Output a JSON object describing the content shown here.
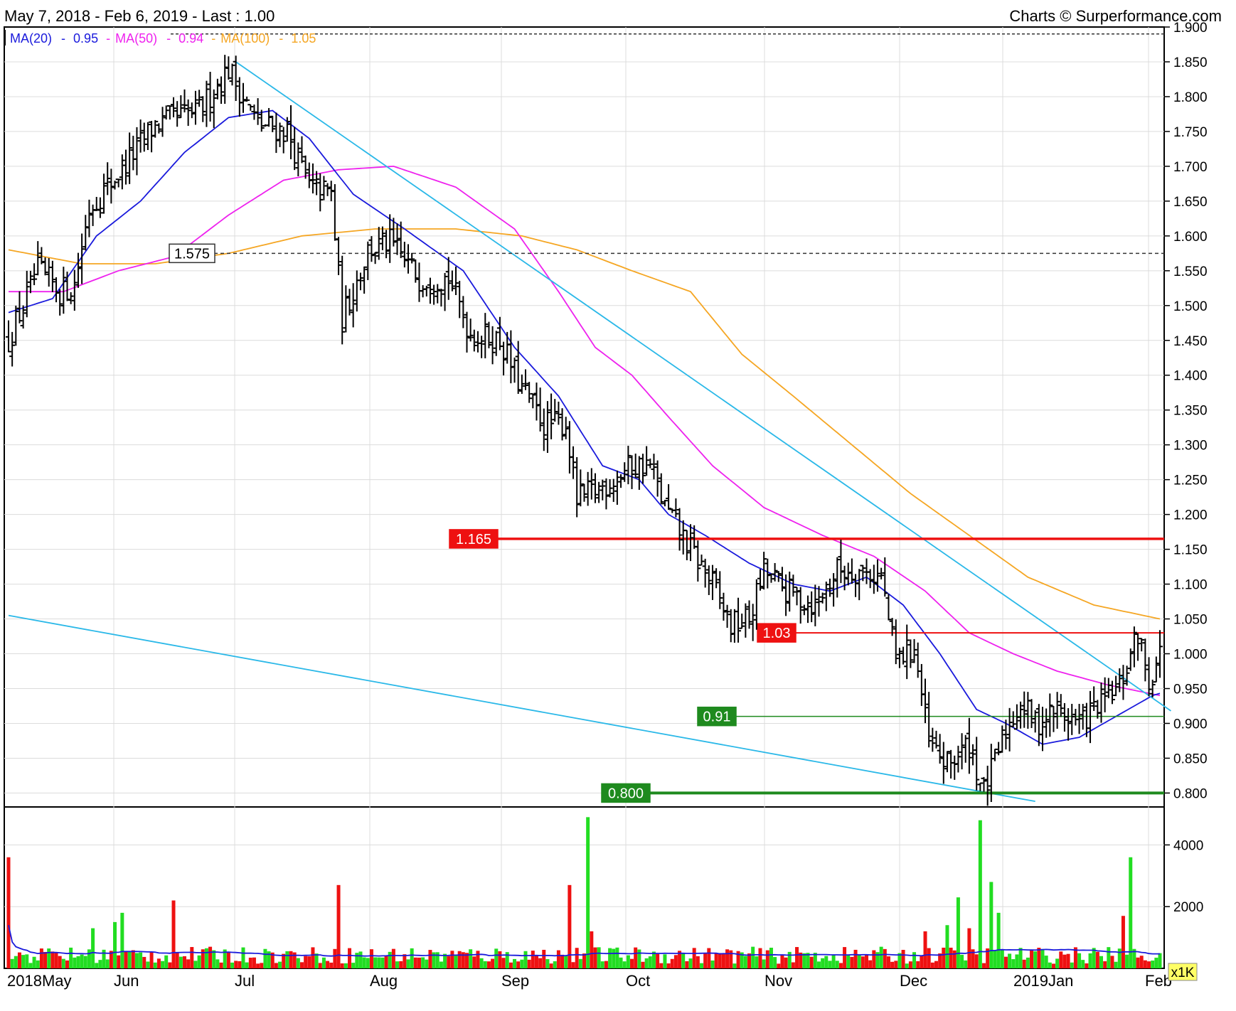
{
  "header": {
    "range_text": "May 7, 2018 - Feb 6, 2019 - Last : 1.00",
    "credit_text": "Charts © Surperformance.com"
  },
  "legend": {
    "ma20_label": "MA(20)",
    "ma20_value": "0.95",
    "ma50_label": "MA(50)",
    "ma50_value": "0.94",
    "ma100_label": "MA(100)",
    "ma100_value": "1.05",
    "sep": "-"
  },
  "volume_unit": "x1K",
  "colors": {
    "price": "#000000",
    "ma20": "#1a1adc",
    "ma50": "#ee22ee",
    "ma100": "#f5a623",
    "trend": "#2ab8e8",
    "resistance": "#ee1111",
    "support": "#119911",
    "vol_up": "#22dd22",
    "vol_down": "#ee1111",
    "vol_avg": "#1a1adc",
    "grid": "#dcdcdc"
  },
  "chart_data": {
    "type": "ohlc",
    "title": "",
    "x_months": [
      "2018May",
      "Jun",
      "Jul",
      "Aug",
      "Sep",
      "Oct",
      "Nov",
      "Dec",
      "2019Jan",
      "Feb"
    ],
    "price_axis": {
      "ylim": [
        0.78,
        1.9
      ],
      "ticks": [
        1.9,
        1.85,
        1.8,
        1.75,
        1.7,
        1.65,
        1.6,
        1.55,
        1.5,
        1.45,
        1.4,
        1.35,
        1.3,
        1.25,
        1.2,
        1.15,
        1.1,
        1.05,
        1.0,
        0.95,
        0.9,
        0.85,
        0.8
      ]
    },
    "volume_axis": {
      "ylim": [
        0,
        5000
      ],
      "ticks": [
        4000,
        2000
      ]
    },
    "levels": [
      {
        "label": "1.575",
        "value": 1.575,
        "kind": "dashed"
      },
      {
        "label": "1.165",
        "value": 1.165,
        "kind": "resistance-strong"
      },
      {
        "label": "1.03",
        "value": 1.03,
        "kind": "resistance"
      },
      {
        "label": "0.91",
        "value": 0.91,
        "kind": "support"
      },
      {
        "label": "0.800",
        "value": 0.8,
        "kind": "support-strong"
      }
    ],
    "top_dashed_value": 1.89,
    "price_anchors": [
      [
        0,
        1.45
      ],
      [
        8,
        1.55
      ],
      [
        14,
        1.52
      ],
      [
        18,
        1.53
      ],
      [
        22,
        1.64
      ],
      [
        30,
        1.69
      ],
      [
        40,
        1.76
      ],
      [
        52,
        1.78
      ],
      [
        60,
        1.84
      ],
      [
        68,
        1.76
      ],
      [
        76,
        1.75
      ],
      [
        82,
        1.67
      ],
      [
        88,
        1.66
      ],
      [
        91,
        1.48
      ],
      [
        98,
        1.58
      ],
      [
        104,
        1.59
      ],
      [
        112,
        1.54
      ],
      [
        120,
        1.54
      ],
      [
        126,
        1.46
      ],
      [
        134,
        1.45
      ],
      [
        140,
        1.38
      ],
      [
        146,
        1.33
      ],
      [
        152,
        1.33
      ],
      [
        155,
        1.22
      ],
      [
        162,
        1.24
      ],
      [
        170,
        1.27
      ],
      [
        175,
        1.27
      ],
      [
        179,
        1.21
      ],
      [
        186,
        1.15
      ],
      [
        192,
        1.1
      ],
      [
        197,
        1.04
      ],
      [
        202,
        1.05
      ],
      [
        206,
        1.12
      ],
      [
        212,
        1.09
      ],
      [
        220,
        1.07
      ],
      [
        226,
        1.12
      ],
      [
        232,
        1.12
      ],
      [
        238,
        1.11
      ],
      [
        242,
        0.99
      ],
      [
        247,
        1.01
      ],
      [
        251,
        0.87
      ],
      [
        256,
        0.84
      ],
      [
        262,
        0.87
      ],
      [
        266,
        0.8
      ],
      [
        272,
        0.89
      ],
      [
        276,
        0.93
      ],
      [
        280,
        0.9
      ],
      [
        286,
        0.92
      ],
      [
        292,
        0.9
      ],
      [
        298,
        0.93
      ],
      [
        303,
        0.95
      ],
      [
        308,
        1.03
      ],
      [
        311,
        0.96
      ],
      [
        314,
        1.0
      ]
    ],
    "ma20_anchors": [
      [
        0,
        1.49
      ],
      [
        12,
        1.51
      ],
      [
        24,
        1.6
      ],
      [
        36,
        1.65
      ],
      [
        48,
        1.72
      ],
      [
        60,
        1.77
      ],
      [
        72,
        1.78
      ],
      [
        82,
        1.74
      ],
      [
        94,
        1.66
      ],
      [
        108,
        1.61
      ],
      [
        124,
        1.55
      ],
      [
        138,
        1.44
      ],
      [
        150,
        1.37
      ],
      [
        162,
        1.27
      ],
      [
        172,
        1.25
      ],
      [
        180,
        1.2
      ],
      [
        190,
        1.17
      ],
      [
        202,
        1.13
      ],
      [
        214,
        1.1
      ],
      [
        224,
        1.09
      ],
      [
        234,
        1.11
      ],
      [
        244,
        1.07
      ],
      [
        254,
        1.0
      ],
      [
        264,
        0.92
      ],
      [
        272,
        0.9
      ],
      [
        282,
        0.87
      ],
      [
        292,
        0.88
      ],
      [
        302,
        0.91
      ],
      [
        312,
        0.94
      ],
      [
        314,
        0.943
      ]
    ],
    "ma50_anchors": [
      [
        0,
        1.52
      ],
      [
        15,
        1.52
      ],
      [
        30,
        1.55
      ],
      [
        45,
        1.57
      ],
      [
        60,
        1.63
      ],
      [
        75,
        1.68
      ],
      [
        90,
        1.695
      ],
      [
        105,
        1.7
      ],
      [
        122,
        1.67
      ],
      [
        138,
        1.61
      ],
      [
        150,
        1.52
      ],
      [
        160,
        1.44
      ],
      [
        170,
        1.4
      ],
      [
        180,
        1.34
      ],
      [
        192,
        1.27
      ],
      [
        206,
        1.21
      ],
      [
        222,
        1.17
      ],
      [
        236,
        1.14
      ],
      [
        250,
        1.09
      ],
      [
        262,
        1.03
      ],
      [
        274,
        1.0
      ],
      [
        286,
        0.975
      ],
      [
        300,
        0.955
      ],
      [
        314,
        0.94
      ]
    ],
    "ma100_anchors": [
      [
        0,
        1.58
      ],
      [
        20,
        1.56
      ],
      [
        40,
        1.56
      ],
      [
        60,
        1.575
      ],
      [
        80,
        1.6
      ],
      [
        100,
        1.61
      ],
      [
        122,
        1.61
      ],
      [
        140,
        1.6
      ],
      [
        155,
        1.58
      ],
      [
        170,
        1.55
      ],
      [
        186,
        1.52
      ],
      [
        200,
        1.43
      ],
      [
        214,
        1.37
      ],
      [
        230,
        1.3
      ],
      [
        246,
        1.23
      ],
      [
        262,
        1.17
      ],
      [
        278,
        1.11
      ],
      [
        296,
        1.07
      ],
      [
        314,
        1.05
      ]
    ],
    "trend_lines": [
      {
        "from": [
          62,
          1.85
        ],
        "to": [
          317,
          0.918
        ]
      },
      {
        "from": [
          0,
          1.055
        ],
        "to": [
          280,
          0.788
        ]
      }
    ],
    "volume_spikes": [
      [
        0,
        3600
      ],
      [
        23,
        1300
      ],
      [
        29,
        1500
      ],
      [
        31,
        1800
      ],
      [
        45,
        2200
      ],
      [
        90,
        2700
      ],
      [
        153,
        2700
      ],
      [
        158,
        4900
      ],
      [
        159,
        1200
      ],
      [
        250,
        1200
      ],
      [
        256,
        1400
      ],
      [
        259,
        2300
      ],
      [
        262,
        1300
      ],
      [
        265,
        4800
      ],
      [
        268,
        2800
      ],
      [
        270,
        1800
      ],
      [
        304,
        1700
      ],
      [
        306,
        3600
      ]
    ]
  }
}
